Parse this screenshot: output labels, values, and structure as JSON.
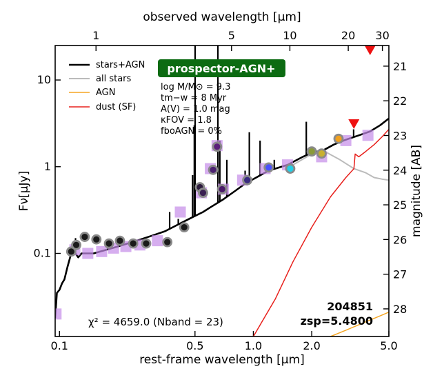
{
  "chart_data": {
    "type": "line",
    "title": "",
    "badge": "prospector-AGN+",
    "colors": {
      "stars_agn": "#000000",
      "all_stars": "#bbbbbb",
      "agn": "#f5a623",
      "dust": "#e8201c",
      "model_points": "#c58be8",
      "upper_limit": "#ee1111",
      "badge_bg": "#0c6b12"
    },
    "axes": {
      "xlabel_bottom": "rest-frame wavelength [μm]",
      "xlabel_top": "observed wavelength [μm]",
      "ylabel_left": "Fν[μJy]",
      "ylabel_right": "magnitude [AB]",
      "x_scale": "log",
      "y_scale": "log",
      "xlim": [
        0.095,
        5.0
      ],
      "ylim": [
        0.011,
        25.0
      ],
      "x_ticks": [
        {
          "value": 0.1,
          "label": "0.1"
        },
        {
          "value": 0.5,
          "label": "0.5"
        },
        {
          "value": 1.0,
          "label": "1.0"
        },
        {
          "value": 2.0,
          "label": "2.0"
        },
        {
          "value": 5.0,
          "label": "5.0"
        }
      ],
      "x_top_ticks": [
        {
          "value": 1,
          "label": "1"
        },
        {
          "value": 5,
          "label": "5"
        },
        {
          "value": 10,
          "label": "10"
        },
        {
          "value": 20,
          "label": "20"
        },
        {
          "value": 30,
          "label": "30"
        }
      ],
      "y_ticks": [
        {
          "value": 0.1,
          "label": "0.1"
        },
        {
          "value": 1,
          "label": "1"
        },
        {
          "value": 10,
          "label": "10"
        }
      ],
      "mag_ticks": [
        "21",
        "22",
        "23",
        "24",
        "25",
        "26",
        "27",
        "28"
      ],
      "redshift_factor": 6.48
    },
    "legend": [
      {
        "label": "stars+AGN",
        "key": "stars_agn"
      },
      {
        "label": "all stars",
        "key": "all_stars"
      },
      {
        "label": "AGN",
        "key": "agn"
      },
      {
        "label": "dust (SF)",
        "key": "dust"
      }
    ],
    "params": [
      "log M/M⊙ = 9.3",
      "tm−w = 8 Myr",
      "A(V) = 1.0 mag",
      "κFOV = 1.8",
      "fboAGN = 0%"
    ],
    "annotations": {
      "chi2": "χ² = 4659.0 (Nband = 23)",
      "object_id": "204851",
      "zsp": "zsp=5.4800"
    },
    "series": [
      {
        "name": "stars+AGN",
        "key": "stars_agn",
        "points": [
          [
            0.095,
            0.018
          ],
          [
            0.097,
            0.035
          ],
          [
            0.1,
            0.038
          ],
          [
            0.103,
            0.045
          ],
          [
            0.106,
            0.05
          ],
          [
            0.11,
            0.07
          ],
          [
            0.115,
            0.1
          ],
          [
            0.121,
            0.1
          ],
          [
            0.125,
            0.09
          ],
          [
            0.13,
            0.1
          ],
          [
            0.15,
            0.1
          ],
          [
            0.2,
            0.12
          ],
          [
            0.25,
            0.14
          ],
          [
            0.3,
            0.16
          ],
          [
            0.35,
            0.18
          ],
          [
            0.4,
            0.21
          ],
          [
            0.45,
            0.24
          ],
          [
            0.5,
            0.27
          ],
          [
            0.55,
            0.3
          ],
          [
            0.6,
            0.34
          ],
          [
            0.7,
            0.42
          ],
          [
            0.8,
            0.52
          ],
          [
            0.9,
            0.63
          ],
          [
            1.0,
            0.72
          ],
          [
            1.2,
            0.9
          ],
          [
            1.5,
            1.05
          ],
          [
            1.8,
            1.3
          ],
          [
            2.0,
            1.45
          ],
          [
            2.3,
            1.55
          ],
          [
            2.6,
            1.8
          ],
          [
            3.0,
            2.05
          ],
          [
            3.5,
            2.3
          ],
          [
            4.0,
            2.55
          ],
          [
            4.5,
            3.0
          ],
          [
            5.0,
            3.6
          ]
        ]
      },
      {
        "name": "all stars",
        "key": "all_stars",
        "points": [
          [
            1.6,
            1.05
          ],
          [
            2.0,
            1.4
          ],
          [
            2.4,
            1.45
          ],
          [
            2.8,
            1.2
          ],
          [
            3.3,
            0.95
          ],
          [
            3.8,
            0.85
          ],
          [
            4.2,
            0.75
          ],
          [
            4.6,
            0.72
          ],
          [
            5.0,
            0.7
          ]
        ]
      },
      {
        "name": "AGN",
        "key": "agn",
        "points": [
          [
            2.5,
            0.011
          ],
          [
            3.0,
            0.013
          ],
          [
            3.5,
            0.015
          ],
          [
            4.0,
            0.017
          ],
          [
            4.5,
            0.019
          ],
          [
            5.0,
            0.021
          ]
        ]
      },
      {
        "name": "dust (SF)",
        "key": "dust",
        "points": [
          [
            1.0,
            0.011
          ],
          [
            1.3,
            0.03
          ],
          [
            1.6,
            0.08
          ],
          [
            2.0,
            0.2
          ],
          [
            2.5,
            0.45
          ],
          [
            3.0,
            0.75
          ],
          [
            3.3,
            0.95
          ],
          [
            3.35,
            1.4
          ],
          [
            3.5,
            1.3
          ],
          [
            3.8,
            1.5
          ],
          [
            4.2,
            1.8
          ],
          [
            4.6,
            2.2
          ],
          [
            5.0,
            2.7
          ]
        ]
      }
    ],
    "emission_lines": [
      [
        0.121,
        0.15
      ],
      [
        0.37,
        0.3
      ],
      [
        0.41,
        0.25
      ],
      [
        0.486,
        0.8
      ],
      [
        0.496,
        3.0
      ],
      [
        0.5007,
        28.0
      ],
      [
        0.6563,
        28.0
      ],
      [
        0.6716,
        2.0
      ],
      [
        0.73,
        1.2
      ],
      [
        0.9069,
        0.9
      ],
      [
        0.9532,
        2.5
      ],
      [
        1.083,
        2.0
      ],
      [
        1.282,
        1.2
      ],
      [
        1.875,
        3.3
      ],
      [
        3.29,
        2.7
      ]
    ],
    "observed_points": [
      {
        "x": 0.115,
        "y": 0.105,
        "fill": "#1a1a1a"
      },
      {
        "x": 0.122,
        "y": 0.125,
        "fill": "#1a1a1a"
      },
      {
        "x": 0.135,
        "y": 0.155,
        "fill": "#1a1a1a"
      },
      {
        "x": 0.155,
        "y": 0.145,
        "fill": "#1a1a1a"
      },
      {
        "x": 0.18,
        "y": 0.13,
        "fill": "#1a1a1a"
      },
      {
        "x": 0.205,
        "y": 0.14,
        "fill": "#1a1a1a"
      },
      {
        "x": 0.24,
        "y": 0.13,
        "fill": "#1a1a1a"
      },
      {
        "x": 0.28,
        "y": 0.13,
        "fill": "#1a1a1a"
      },
      {
        "x": 0.36,
        "y": 0.135,
        "fill": "#1a1a1a"
      },
      {
        "x": 0.44,
        "y": 0.2,
        "fill": "#1a1a1a"
      },
      {
        "x": 0.53,
        "y": 0.58,
        "fill": "#2b1a3c"
      },
      {
        "x": 0.55,
        "y": 0.5,
        "fill": "#3a1f52"
      },
      {
        "x": 0.62,
        "y": 0.92,
        "fill": "#4b2070"
      },
      {
        "x": 0.65,
        "y": 1.7,
        "fill": "#5a1f7a"
      },
      {
        "x": 0.69,
        "y": 0.55,
        "fill": "#4a1a6a"
      },
      {
        "x": 0.93,
        "y": 0.7,
        "fill": "#3a2a80"
      },
      {
        "x": 1.2,
        "y": 0.98,
        "fill": "#4a50ff"
      },
      {
        "x": 1.55,
        "y": 0.95,
        "fill": "#22d0e8"
      },
      {
        "x": 2.0,
        "y": 1.5,
        "fill": "#8a9a3a"
      },
      {
        "x": 2.25,
        "y": 1.42,
        "fill": "#c8b030"
      },
      {
        "x": 2.75,
        "y": 2.1,
        "fill": "#f0a020"
      }
    ],
    "model_points": [
      {
        "x": 0.096,
        "y": 0.02
      },
      {
        "x": 0.12,
        "y": 0.11
      },
      {
        "x": 0.14,
        "y": 0.1
      },
      {
        "x": 0.165,
        "y": 0.105
      },
      {
        "x": 0.19,
        "y": 0.115
      },
      {
        "x": 0.22,
        "y": 0.12
      },
      {
        "x": 0.26,
        "y": 0.125
      },
      {
        "x": 0.32,
        "y": 0.14
      },
      {
        "x": 0.42,
        "y": 0.3
      },
      {
        "x": 0.54,
        "y": 0.5
      },
      {
        "x": 0.6,
        "y": 0.95
      },
      {
        "x": 0.65,
        "y": 1.75
      },
      {
        "x": 0.7,
        "y": 0.55
      },
      {
        "x": 0.88,
        "y": 0.7
      },
      {
        "x": 1.15,
        "y": 0.95
      },
      {
        "x": 1.5,
        "y": 1.05
      },
      {
        "x": 2.25,
        "y": 1.3
      },
      {
        "x": 3.0,
        "y": 2.0
      },
      {
        "x": 3.9,
        "y": 2.3
      }
    ],
    "upper_limits": [
      {
        "x": 3.3,
        "y": 3.1
      },
      {
        "x": 4.0,
        "y": 22.0
      }
    ]
  }
}
